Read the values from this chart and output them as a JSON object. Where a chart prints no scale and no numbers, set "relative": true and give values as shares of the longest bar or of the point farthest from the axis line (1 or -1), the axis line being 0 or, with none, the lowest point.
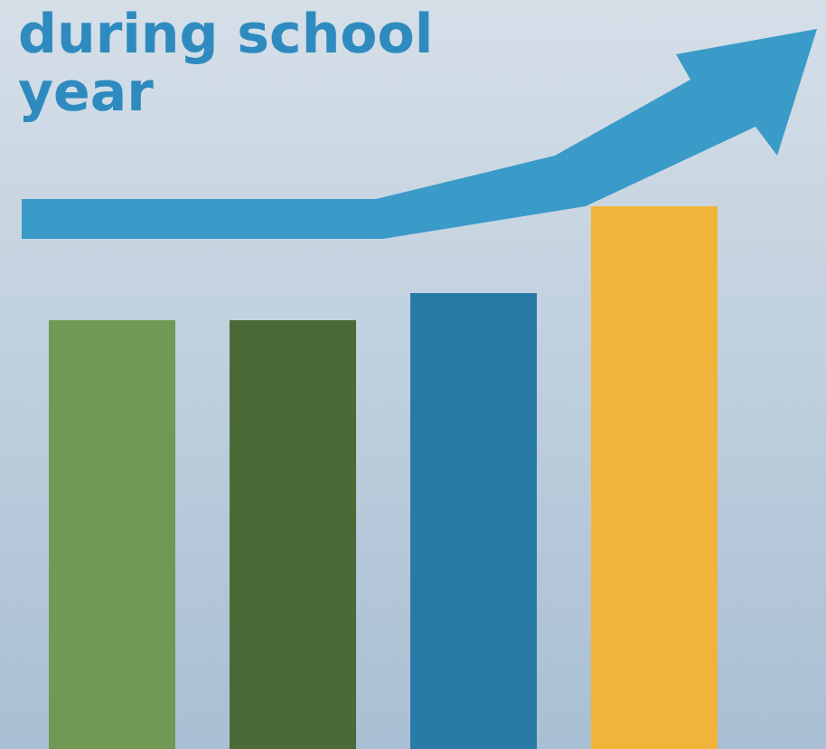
{
  "chart_data": {
    "type": "bar",
    "title": "during school year",
    "relative": true,
    "categories": [
      null,
      null,
      null,
      null
    ],
    "values": [
      0.79,
      0.79,
      0.84,
      1
    ],
    "colors": [
      "#6f9a55",
      "#4a6a38",
      "#2a7aa8",
      "#f0b43a"
    ]
  }
}
